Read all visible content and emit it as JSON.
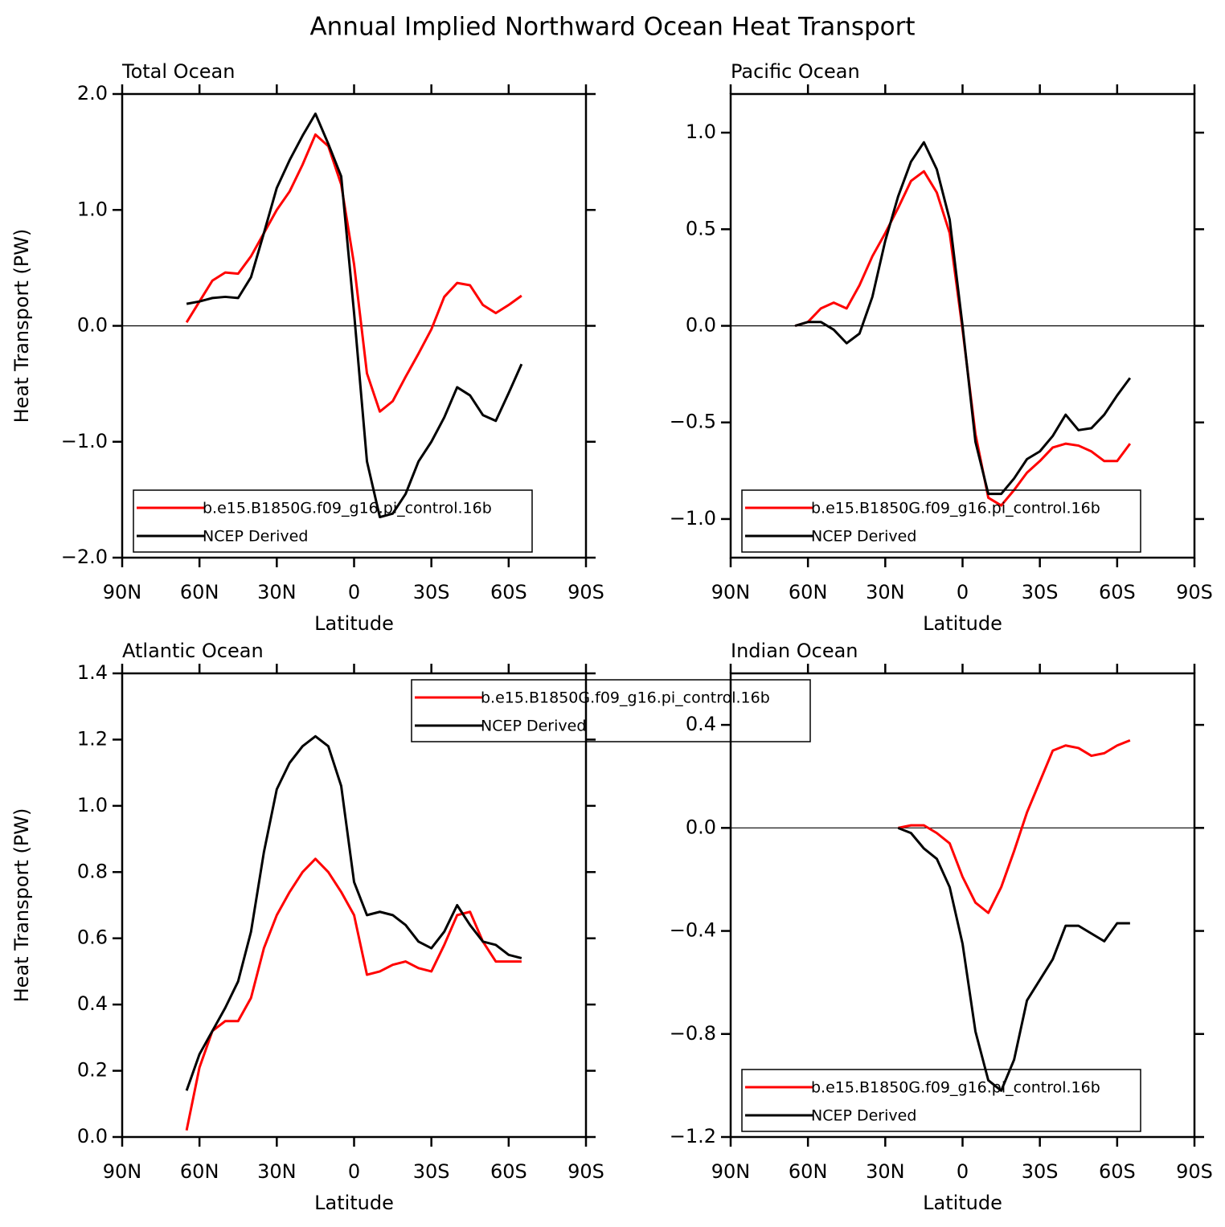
{
  "title": "Annual Implied Northward Ocean Heat Transport",
  "chart_data": [
    {
      "type": "line",
      "title": "Total Ocean",
      "x_label": "Latitude",
      "y_label": "Heat Transport (PW)",
      "legend": "lower center",
      "zero_line": true,
      "xlim": [
        90,
        -90
      ],
      "xticks": [
        {
          "value": 90,
          "label": "90N"
        },
        {
          "value": 60,
          "label": "60N"
        },
        {
          "value": 30,
          "label": "30N"
        },
        0,
        {
          "value": -30,
          "label": "30S"
        },
        {
          "value": -60,
          "label": "60S"
        },
        {
          "value": -90,
          "label": "90S"
        }
      ],
      "ylim": [
        -2,
        2
      ],
      "yticks": [
        {
          "value": 2,
          "label": "2.0"
        },
        {
          "value": 1,
          "label": "1.0"
        },
        {
          "value": 0,
          "label": "0.0"
        },
        {
          "value": -1,
          "label": "−1.0"
        },
        {
          "value": -2,
          "label": "−2.0"
        }
      ],
      "x": [
        65,
        60,
        55,
        50,
        45,
        40,
        35,
        30,
        25,
        20,
        15,
        10,
        5,
        0,
        -5,
        -10,
        -15,
        -20,
        -25,
        -30,
        -35,
        -40,
        -45,
        -50,
        -55,
        -60,
        -65
      ],
      "series": [
        {
          "name": "b.e15.B1850G.f09_g16.pi_control.16b",
          "color": "#ff0000",
          "values": [
            0.03,
            0.21,
            0.39,
            0.46,
            0.45,
            0.6,
            0.8,
            1.0,
            1.16,
            1.39,
            1.65,
            1.55,
            1.22,
            0.53,
            -0.41,
            -0.74,
            -0.65,
            -0.44,
            -0.24,
            -0.03,
            0.25,
            0.37,
            0.35,
            0.18,
            0.11,
            0.18,
            0.26
          ]
        },
        {
          "name": "NCEP Derived",
          "color": "#000000",
          "values": [
            0.19,
            0.21,
            0.24,
            0.25,
            0.24,
            0.42,
            0.8,
            1.19,
            1.43,
            1.64,
            1.83,
            1.57,
            1.29,
            0.11,
            -1.17,
            -1.65,
            -1.62,
            -1.45,
            -1.17,
            -1.0,
            -0.79,
            -0.53,
            -0.6,
            -0.77,
            -0.82,
            -0.58,
            -0.33
          ]
        }
      ]
    },
    {
      "type": "line",
      "title": "Pacific Ocean",
      "x_label": "Latitude",
      "legend": "lower center",
      "zero_line": true,
      "xlim": [
        90,
        -90
      ],
      "xticks": [
        {
          "value": 90,
          "label": "90N"
        },
        {
          "value": 60,
          "label": "60N"
        },
        {
          "value": 30,
          "label": "30N"
        },
        0,
        {
          "value": -30,
          "label": "30S"
        },
        {
          "value": -60,
          "label": "60S"
        },
        {
          "value": -90,
          "label": "90S"
        }
      ],
      "ylim": [
        -1.2,
        1.2
      ],
      "yticks": [
        {
          "value": 1,
          "label": "1.0"
        },
        0.5,
        {
          "value": 0,
          "label": "0.0"
        },
        {
          "value": -0.5,
          "label": "−0.5"
        },
        {
          "value": -1,
          "label": "−1.0"
        }
      ],
      "x": [
        65,
        60,
        55,
        50,
        45,
        40,
        35,
        30,
        25,
        20,
        15,
        10,
        5,
        0,
        -5,
        -10,
        -15,
        -20,
        -25,
        -30,
        -35,
        -40,
        -45,
        -50,
        -55,
        -60,
        -65
      ],
      "series": [
        {
          "name": "b.e15.B1850G.f09_g16.pi_control.16b",
          "color": "#ff0000",
          "values": [
            0,
            0.02,
            0.09,
            0.12,
            0.09,
            0.21,
            0.36,
            0.48,
            0.61,
            0.75,
            0.8,
            0.69,
            0.48,
            -0.02,
            -0.56,
            -0.89,
            -0.93,
            -0.85,
            -0.76,
            -0.7,
            -0.63,
            -0.61,
            -0.62,
            -0.65,
            -0.7,
            -0.7,
            -0.61
          ]
        },
        {
          "name": "NCEP Derived",
          "color": "#000000",
          "values": [
            0,
            0.02,
            0.02,
            -0.02,
            -0.09,
            -0.04,
            0.15,
            0.44,
            0.67,
            0.85,
            0.95,
            0.81,
            0.55,
            0,
            -0.6,
            -0.87,
            -0.87,
            -0.79,
            -0.69,
            -0.65,
            -0.57,
            -0.46,
            -0.54,
            -0.53,
            -0.46,
            -0.36,
            -0.27
          ]
        }
      ]
    },
    {
      "type": "line",
      "title": "Atlantic Ocean",
      "x_label": "Latitude",
      "y_label": "Heat Transport (PW)",
      "legend": "upper right",
      "zero_line": false,
      "xlim": [
        90,
        -90
      ],
      "xticks": [
        {
          "value": 90,
          "label": "90N"
        },
        {
          "value": 60,
          "label": "60N"
        },
        {
          "value": 30,
          "label": "30N"
        },
        0,
        {
          "value": -30,
          "label": "30S"
        },
        {
          "value": -60,
          "label": "60S"
        },
        {
          "value": -90,
          "label": "90S"
        }
      ],
      "ylim": [
        0,
        1.4
      ],
      "yticks": [
        {
          "value": 1.4,
          "label": "1.4"
        },
        1.2,
        {
          "value": 1,
          "label": "1.0"
        },
        0.8,
        0.6,
        0.4,
        0.2,
        {
          "value": 0,
          "label": "0.0"
        }
      ],
      "x": [
        65,
        60,
        55,
        50,
        45,
        40,
        35,
        30,
        25,
        20,
        15,
        10,
        5,
        0,
        -5,
        -10,
        -15,
        -20,
        -25,
        -30,
        -35,
        -40,
        -45,
        -50,
        -55,
        -60,
        -65
      ],
      "series": [
        {
          "name": "b.e15.B1850G.f09_g16.pi_control.16b",
          "color": "#ff0000",
          "values": [
            0.02,
            0.21,
            0.32,
            0.35,
            0.35,
            0.42,
            0.57,
            0.67,
            0.74,
            0.8,
            0.84,
            0.8,
            0.74,
            0.67,
            0.49,
            0.5,
            0.52,
            0.53,
            0.51,
            0.5,
            0.58,
            0.67,
            0.68,
            0.59,
            0.53,
            0.53,
            0.53
          ]
        },
        {
          "name": "NCEP Derived",
          "color": "#000000",
          "values": [
            0.14,
            0.25,
            0.32,
            0.39,
            0.47,
            0.62,
            0.86,
            1.05,
            1.13,
            1.18,
            1.21,
            1.18,
            1.06,
            0.77,
            0.67,
            0.68,
            0.67,
            0.64,
            0.59,
            0.57,
            0.62,
            0.7,
            0.64,
            0.59,
            0.58,
            0.55,
            0.54
          ]
        }
      ]
    },
    {
      "type": "line",
      "title": "Indian Ocean",
      "x_label": "Latitude",
      "legend": "lower center",
      "zero_line": true,
      "xlim": [
        90,
        -90
      ],
      "xticks": [
        {
          "value": 90,
          "label": "90N"
        },
        {
          "value": 60,
          "label": "60N"
        },
        {
          "value": 30,
          "label": "30N"
        },
        0,
        {
          "value": -30,
          "label": "30S"
        },
        {
          "value": -60,
          "label": "60S"
        },
        {
          "value": -90,
          "label": "90S"
        }
      ],
      "ylim": [
        -1.2,
        0.6
      ],
      "yticks": [
        {
          "value": 0.4,
          "label": "0.4"
        },
        {
          "value": 0,
          "label": "0.0"
        },
        {
          "value": -0.4,
          "label": "−0.4"
        },
        {
          "value": -0.8,
          "label": "−0.8"
        },
        {
          "value": -1.2,
          "label": "−1.2"
        }
      ],
      "x": [
        25,
        20,
        15,
        10,
        5,
        0,
        -5,
        -10,
        -15,
        -20,
        -25,
        -30,
        -35,
        -40,
        -45,
        -50,
        -55,
        -60,
        -65
      ],
      "series": [
        {
          "name": "b.e15.B1850G.f09_g16.pi_control.16b",
          "color": "#ff0000",
          "values": [
            0,
            0.01,
            0.01,
            -0.02,
            -0.06,
            -0.19,
            -0.29,
            -0.33,
            -0.23,
            -0.09,
            0.06,
            0.18,
            0.3,
            0.32,
            0.31,
            0.28,
            0.29,
            0.32,
            0.34
          ]
        },
        {
          "name": "NCEP Derived",
          "color": "#000000",
          "values": [
            0,
            -0.02,
            -0.08,
            -0.12,
            -0.23,
            -0.45,
            -0.79,
            -0.98,
            -1.02,
            -0.9,
            -0.67,
            -0.59,
            -0.51,
            -0.38,
            -0.38,
            -0.41,
            -0.44,
            -0.37,
            -0.37
          ]
        }
      ]
    }
  ]
}
